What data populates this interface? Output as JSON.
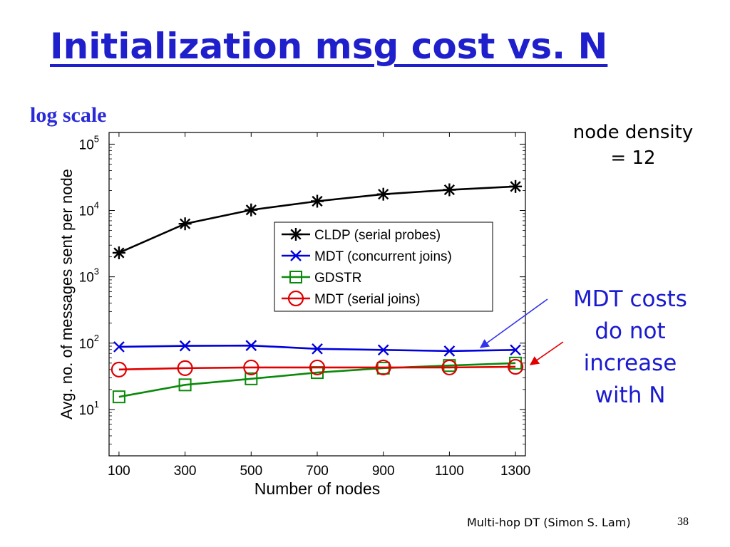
{
  "slide": {
    "title": "Initialization msg cost vs. N",
    "scale_note": "log scale",
    "density_line1": "node density",
    "density_line2": "= 12",
    "callout_lines": [
      "MDT costs",
      "do not",
      "increase",
      "with N"
    ],
    "footer": "Multi-hop DT (Simon S. Lam)",
    "page_number": "38"
  },
  "colors": {
    "title": "#1f1fcc",
    "callout": "#1a1ad0",
    "arrow_blue": "#3333ee",
    "arrow_red": "#e00000"
  },
  "chart_data": {
    "type": "line",
    "xlabel": "Number of nodes",
    "ylabel": "Avg. no. of messages sent per node",
    "x": [
      100,
      300,
      500,
      700,
      900,
      1100,
      1300
    ],
    "xlim": [
      70,
      1330
    ],
    "ylim": [
      2,
      150000
    ],
    "yscale": "log",
    "ytick_labels": [
      {
        "value": 10,
        "base": "10",
        "exp": "1"
      },
      {
        "value": 100,
        "base": "10",
        "exp": "2"
      },
      {
        "value": 1000,
        "base": "10",
        "exp": "3"
      },
      {
        "value": 10000,
        "base": "10",
        "exp": "4"
      },
      {
        "value": 100000,
        "base": "10",
        "exp": "5"
      }
    ],
    "legend_position": "upper-right",
    "grid": false,
    "series": [
      {
        "name": "CLDP (serial probes)",
        "color": "#000000",
        "marker": "star",
        "values": [
          2300,
          6300,
          10200,
          13800,
          17600,
          20500,
          23000
        ]
      },
      {
        "name": "MDT (concurrent joins)",
        "color": "#0000dd",
        "marker": "x",
        "values": [
          88,
          91,
          92,
          82,
          79,
          76,
          79
        ]
      },
      {
        "name": "GDSTR",
        "color": "#0a8a0a",
        "marker": "square",
        "values": [
          15.5,
          23.5,
          29,
          36,
          42,
          46,
          50
        ]
      },
      {
        "name": "MDT (serial joins)",
        "color": "#e00000",
        "marker": "circle",
        "values": [
          40,
          42,
          43,
          43,
          43,
          43,
          44
        ]
      }
    ]
  }
}
